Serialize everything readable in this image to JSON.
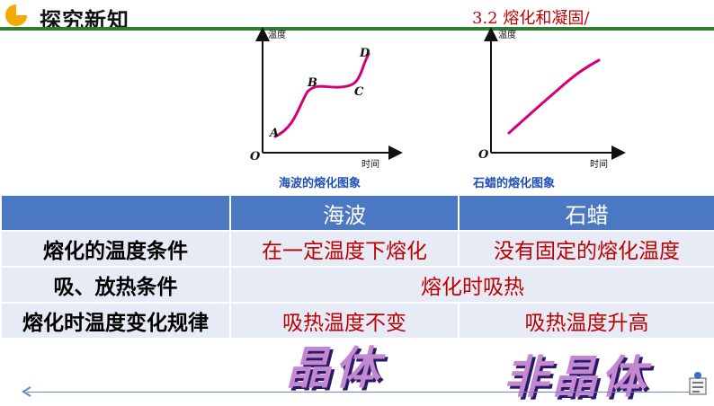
{
  "header": {
    "title": "探究新知",
    "section": "3.2 熔化和凝固/"
  },
  "charts": [
    {
      "ylabel": "温度",
      "xlabel": "时间",
      "origin": "O",
      "points": [
        "A",
        "B",
        "C",
        "D"
      ],
      "caption": "海波的熔化图象"
    },
    {
      "ylabel": "温度",
      "xlabel": "时间",
      "origin": "O",
      "caption": "石蜡的熔化图象"
    }
  ],
  "table": {
    "columns": [
      "",
      "海波",
      "石蜡"
    ],
    "rows": [
      {
        "label": "熔化的温度条件",
        "haibo": "在一定温度下熔化",
        "shila": "没有固定的熔化温度"
      },
      {
        "label": "吸、放热条件",
        "both": "熔化时吸热"
      },
      {
        "label": "熔化时温度变化规律",
        "haibo": "吸热温度不变",
        "shila": "吸热温度升高"
      }
    ]
  },
  "art_labels": {
    "left": "晶体",
    "right": "非晶体"
  },
  "colors": {
    "accent_green": "#2e7d32",
    "table_header": "#4a78c2",
    "table_body": "#e6ebf5",
    "red_text": "#c00000",
    "caption_blue": "#1f4fb5",
    "curve": "#d4007a"
  }
}
